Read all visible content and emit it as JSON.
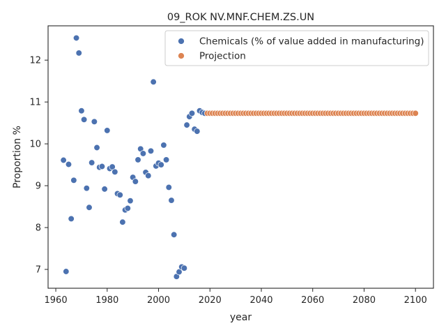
{
  "chart_data": {
    "type": "scatter",
    "title": "09_ROK NV.MNF.CHEM.ZS.UN",
    "xlabel": "year",
    "ylabel": "Proportion %",
    "xlim": [
      1957,
      2107
    ],
    "ylim": [
      6.55,
      12.82
    ],
    "xticks": [
      1960,
      1980,
      2000,
      2020,
      2040,
      2060,
      2080,
      2100
    ],
    "yticks": [
      7,
      8,
      9,
      10,
      11,
      12
    ],
    "grid": false,
    "legend_position": "top-right",
    "series": [
      {
        "name": "Chemicals (% of value added in manufacturing)",
        "color": "#4c72b0",
        "points": [
          [
            1963,
            9.61
          ],
          [
            1964,
            6.95
          ],
          [
            1965,
            9.51
          ],
          [
            1966,
            8.21
          ],
          [
            1967,
            9.13
          ],
          [
            1968,
            12.53
          ],
          [
            1969,
            12.17
          ],
          [
            1970,
            10.79
          ],
          [
            1971,
            10.58
          ],
          [
            1972,
            8.94
          ],
          [
            1973,
            8.48
          ],
          [
            1974,
            9.55
          ],
          [
            1975,
            10.53
          ],
          [
            1976,
            9.91
          ],
          [
            1977,
            9.44
          ],
          [
            1978,
            9.46
          ],
          [
            1979,
            8.92
          ],
          [
            1980,
            10.32
          ],
          [
            1981,
            9.41
          ],
          [
            1982,
            9.45
          ],
          [
            1983,
            9.33
          ],
          [
            1984,
            8.81
          ],
          [
            1985,
            8.78
          ],
          [
            1986,
            8.13
          ],
          [
            1987,
            8.42
          ],
          [
            1988,
            8.46
          ],
          [
            1989,
            8.64
          ],
          [
            1990,
            9.2
          ],
          [
            1991,
            9.1
          ],
          [
            1992,
            9.62
          ],
          [
            1993,
            9.88
          ],
          [
            1994,
            9.77
          ],
          [
            1995,
            9.32
          ],
          [
            1996,
            9.24
          ],
          [
            1997,
            9.83
          ],
          [
            1998,
            11.48
          ],
          [
            1999,
            9.47
          ],
          [
            2000,
            9.54
          ],
          [
            2001,
            9.5
          ],
          [
            2002,
            9.97
          ],
          [
            2003,
            9.62
          ],
          [
            2004,
            8.96
          ],
          [
            2005,
            8.65
          ],
          [
            2006,
            7.83
          ],
          [
            2007,
            6.83
          ],
          [
            2008,
            6.94
          ],
          [
            2009,
            7.06
          ],
          [
            2010,
            7.03
          ],
          [
            2011,
            10.45
          ],
          [
            2012,
            10.65
          ],
          [
            2013,
            10.73
          ],
          [
            2014,
            10.35
          ],
          [
            2015,
            10.3
          ],
          [
            2016,
            10.79
          ],
          [
            2017,
            10.75
          ],
          [
            2018,
            10.73
          ]
        ]
      },
      {
        "name": "Projection",
        "color": "#dd8452",
        "x_start": 2019,
        "x_end": 2100,
        "x_step": 1,
        "y_constant": 10.73
      }
    ]
  }
}
